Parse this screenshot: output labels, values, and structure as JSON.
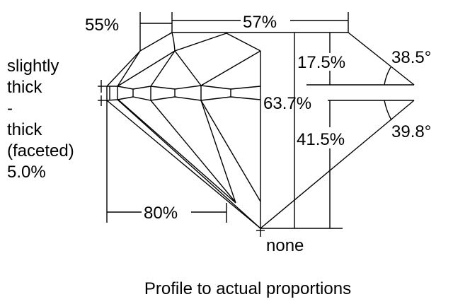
{
  "girdle_label": [
    "slightly",
    "thick",
    "-",
    "thick",
    "(faceted)",
    "5.0%"
  ],
  "measurements": {
    "crown_angle_ref": "55%",
    "table": "57%",
    "crown_height": "17.5%",
    "total_depth": "63.7%",
    "pavilion_depth": "41.5%",
    "crown_angle": "38.5°",
    "pavilion_angle": "39.8°",
    "lower_half": "80%",
    "culet": "none"
  },
  "caption": "Profile to actual proportions"
}
